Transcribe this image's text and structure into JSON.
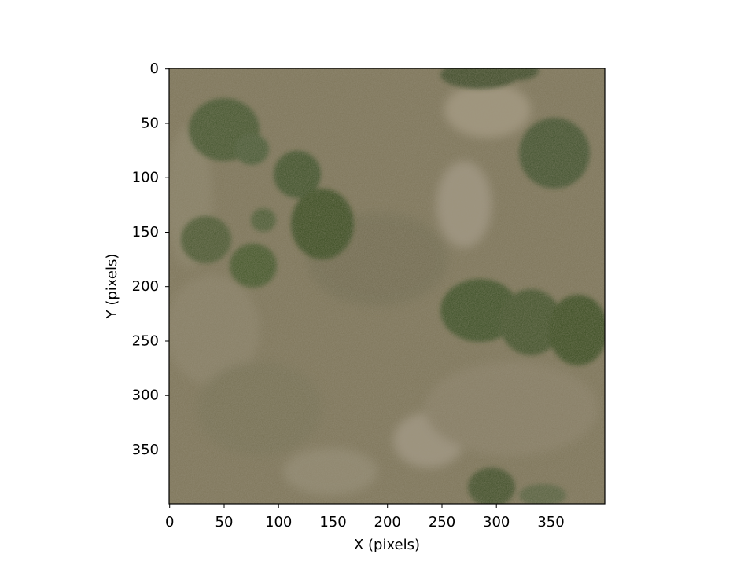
{
  "figure": {
    "xlabel": "X (pixels)",
    "ylabel": "Y (pixels)",
    "x_ticks": [
      "0",
      "50",
      "100",
      "150",
      "200",
      "250",
      "300",
      "350"
    ],
    "y_ticks": [
      "0",
      "50",
      "100",
      "150",
      "200",
      "250",
      "300",
      "350"
    ]
  },
  "image": {
    "content": "aerial view of dry grassland with scattered shrubs",
    "x_range": [
      0,
      400
    ],
    "y_range": [
      0,
      400
    ],
    "colors": {
      "ground": "#7d7458",
      "shrub": "#3c5228",
      "bare_soil": "#b5aa98"
    }
  }
}
